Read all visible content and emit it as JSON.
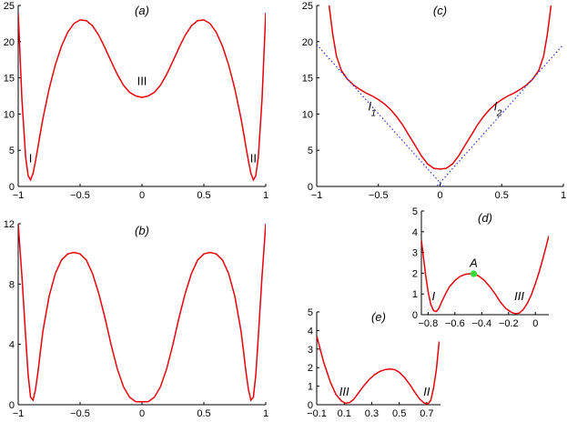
{
  "chart_data": [
    {
      "id": "a",
      "type": "line",
      "title": "(a)",
      "xlim": [
        -1,
        1
      ],
      "ylim": [
        0,
        25
      ],
      "xticks": [
        -1,
        -0.5,
        0,
        0.5,
        1
      ],
      "xtick_labels": [
        "−1",
        "−0.5",
        "0",
        "0.5",
        "1"
      ],
      "yticks": [
        0,
        5,
        10,
        15,
        20,
        25
      ],
      "ytick_labels": [
        "0",
        "5",
        "10",
        "15",
        "20",
        "25"
      ],
      "series": [
        {
          "color": "#e8000b",
          "x": [
            -1.0,
            -0.97,
            -0.94,
            -0.92,
            -0.9,
            -0.88,
            -0.86,
            -0.84,
            -0.82,
            -0.8,
            -0.75,
            -0.7,
            -0.65,
            -0.6,
            -0.55,
            -0.5,
            -0.45,
            -0.4,
            -0.35,
            -0.3,
            -0.25,
            -0.2,
            -0.15,
            -0.1,
            -0.05,
            0.0,
            0.05,
            0.1,
            0.15,
            0.2,
            0.25,
            0.3,
            0.35,
            0.4,
            0.45,
            0.5,
            0.55,
            0.6,
            0.65,
            0.7,
            0.75,
            0.8,
            0.82,
            0.84,
            0.86,
            0.88,
            0.9,
            0.92,
            0.94,
            0.97,
            1.0
          ],
          "y": [
            24.0,
            12.0,
            4.0,
            1.5,
            0.9,
            1.8,
            3.5,
            5.5,
            7.5,
            9.4,
            13.5,
            16.8,
            19.4,
            21.3,
            22.5,
            23.0,
            22.9,
            22.2,
            20.9,
            19.2,
            17.3,
            15.5,
            14.0,
            13.0,
            12.5,
            12.3,
            12.5,
            13.0,
            14.0,
            15.5,
            17.3,
            19.2,
            20.9,
            22.2,
            22.9,
            23.0,
            22.5,
            21.3,
            19.4,
            16.8,
            13.5,
            9.4,
            7.5,
            5.5,
            3.5,
            1.8,
            0.9,
            1.5,
            4.0,
            12.0,
            24.0
          ]
        }
      ],
      "annotations": [
        {
          "text": "I",
          "x": -0.9,
          "y": 3.3
        },
        {
          "text": "II",
          "x": 0.9,
          "y": 3.3
        },
        {
          "text": "III",
          "x": 0.0,
          "y": 14.0
        }
      ]
    },
    {
      "id": "b",
      "type": "line",
      "title": "(b)",
      "xlim": [
        -1,
        1
      ],
      "ylim": [
        0,
        12
      ],
      "xticks": [
        -1,
        -0.5,
        0,
        0.5,
        1
      ],
      "xtick_labels": [
        "−1",
        "−0.5",
        "0",
        "0.5",
        "1"
      ],
      "yticks": [
        0,
        4,
        8,
        12
      ],
      "ytick_labels": [
        "0",
        "4",
        "8",
        "12"
      ],
      "series": [
        {
          "color": "#e8000b",
          "x": [
            -1.0,
            -0.97,
            -0.94,
            -0.92,
            -0.9,
            -0.88,
            -0.86,
            -0.84,
            -0.82,
            -0.8,
            -0.75,
            -0.7,
            -0.65,
            -0.6,
            -0.55,
            -0.5,
            -0.45,
            -0.4,
            -0.35,
            -0.3,
            -0.25,
            -0.2,
            -0.15,
            -0.1,
            -0.05,
            0.0,
            0.05,
            0.1,
            0.15,
            0.2,
            0.25,
            0.3,
            0.35,
            0.4,
            0.45,
            0.5,
            0.55,
            0.6,
            0.65,
            0.7,
            0.75,
            0.8,
            0.82,
            0.84,
            0.86,
            0.88,
            0.9,
            0.92,
            0.94,
            0.97,
            1.0
          ],
          "y": [
            12.0,
            8.5,
            4.5,
            2.0,
            0.5,
            0.3,
            1.0,
            2.2,
            3.6,
            4.9,
            7.2,
            8.7,
            9.6,
            10.0,
            10.1,
            10.0,
            9.6,
            8.7,
            7.4,
            5.8,
            4.0,
            2.4,
            1.2,
            0.5,
            0.2,
            0.2,
            0.2,
            0.5,
            1.2,
            2.4,
            4.0,
            5.8,
            7.4,
            8.7,
            9.6,
            10.0,
            10.1,
            10.0,
            9.6,
            8.7,
            7.2,
            4.9,
            3.6,
            2.2,
            1.0,
            0.3,
            0.5,
            2.0,
            4.5,
            8.5,
            12.0
          ]
        }
      ]
    },
    {
      "id": "c",
      "type": "line",
      "title": "(c)",
      "xlim": [
        -1,
        1
      ],
      "ylim": [
        0,
        25
      ],
      "xticks": [
        -1,
        -0.5,
        0,
        0.5,
        1
      ],
      "xtick_labels": [
        "−1",
        "−0.5",
        "0",
        "0.5",
        "1"
      ],
      "yticks": [
        0,
        5,
        10,
        15,
        20,
        25
      ],
      "ytick_labels": [
        "0",
        "5",
        "10",
        "15",
        "20",
        "25"
      ],
      "series": [
        {
          "color": "#e8000b",
          "x": [
            -0.9,
            -0.87,
            -0.84,
            -0.8,
            -0.75,
            -0.7,
            -0.65,
            -0.6,
            -0.55,
            -0.5,
            -0.45,
            -0.4,
            -0.35,
            -0.3,
            -0.25,
            -0.2,
            -0.15,
            -0.1,
            -0.05,
            0.0,
            0.05,
            0.1,
            0.15,
            0.2,
            0.25,
            0.3,
            0.35,
            0.4,
            0.45,
            0.5,
            0.55,
            0.6,
            0.65,
            0.7,
            0.75,
            0.8,
            0.84,
            0.87,
            0.9
          ],
          "y": [
            25.0,
            21.0,
            18.0,
            16.0,
            14.8,
            14.0,
            13.4,
            12.9,
            12.5,
            12.0,
            11.4,
            10.6,
            9.6,
            8.4,
            7.0,
            5.6,
            4.2,
            3.1,
            2.5,
            2.4,
            2.5,
            3.1,
            4.2,
            5.6,
            7.0,
            8.4,
            9.6,
            10.6,
            11.4,
            12.0,
            12.5,
            12.9,
            13.4,
            14.0,
            14.8,
            16.0,
            18.0,
            21.0,
            25.0
          ]
        },
        {
          "name": "l",
          "color": "#3030d8",
          "style": "dotted",
          "x": [
            -1.0,
            0.1
          ],
          "y": [
            19.6,
            -1.4
          ]
        },
        {
          "name": "l",
          "color": "#3030d8",
          "style": "dotted",
          "x": [
            -0.1,
            1.0
          ],
          "y": [
            -1.4,
            19.6
          ]
        }
      ],
      "annotations": [
        {
          "text": "l",
          "sub": "1",
          "x": -0.55,
          "y": 10.5
        },
        {
          "text": "l",
          "sub": "2",
          "x": 0.47,
          "y": 10.5
        }
      ]
    },
    {
      "id": "d",
      "type": "line",
      "title": "(d)",
      "xlim": [
        -0.85,
        0.1
      ],
      "ylim": [
        0,
        5
      ],
      "xticks": [
        -0.8,
        -0.6,
        -0.4,
        -0.2,
        0
      ],
      "xtick_labels": [
        "−0.8",
        "−0.6",
        "−0.4",
        "−0.2",
        "0"
      ],
      "yticks": [
        0,
        1,
        2,
        3,
        4,
        5
      ],
      "ytick_labels": [
        "0",
        "1",
        "2",
        "3",
        "4",
        "5"
      ],
      "series": [
        {
          "color": "#e8000b",
          "x": [
            -0.85,
            -0.82,
            -0.8,
            -0.78,
            -0.76,
            -0.74,
            -0.72,
            -0.7,
            -0.67,
            -0.64,
            -0.6,
            -0.56,
            -0.52,
            -0.48,
            -0.45,
            -0.42,
            -0.38,
            -0.34,
            -0.3,
            -0.26,
            -0.22,
            -0.18,
            -0.15,
            -0.12,
            -0.09,
            -0.06,
            -0.03,
            0.0,
            0.03,
            0.06,
            0.08,
            0.1
          ],
          "y": [
            3.6,
            2.0,
            1.1,
            0.5,
            0.2,
            0.15,
            0.3,
            0.6,
            1.0,
            1.35,
            1.65,
            1.85,
            1.95,
            1.98,
            1.95,
            1.85,
            1.65,
            1.35,
            1.0,
            0.6,
            0.3,
            0.12,
            0.05,
            0.08,
            0.25,
            0.55,
            0.95,
            1.5,
            2.1,
            2.8,
            3.3,
            3.8
          ]
        }
      ],
      "point": {
        "label": "A",
        "x": -0.46,
        "y": 1.97,
        "color": "#33dd33"
      },
      "annotations": [
        {
          "text": "I",
          "x": -0.76,
          "y": 0.7
        },
        {
          "text": "III",
          "x": -0.12,
          "y": 0.7
        },
        {
          "text": "A",
          "x": -0.46,
          "y": 2.3
        }
      ]
    },
    {
      "id": "e",
      "type": "line",
      "title": "(e)",
      "xlim": [
        -0.1,
        0.8
      ],
      "ylim": [
        0,
        5
      ],
      "xticks": [
        -0.1,
        0.1,
        0.3,
        0.5,
        0.7
      ],
      "xtick_labels": [
        "−0.1",
        "0.1",
        "0.3",
        "0.5",
        "0.7"
      ],
      "yticks": [
        0,
        1,
        2,
        3,
        4,
        5
      ],
      "ytick_labels": [
        "0",
        "1",
        "2",
        "3",
        "4",
        "5"
      ],
      "series": [
        {
          "color": "#e8000b",
          "x": [
            -0.1,
            -0.05,
            0.0,
            0.04,
            0.08,
            0.11,
            0.14,
            0.17,
            0.2,
            0.24,
            0.28,
            0.32,
            0.36,
            0.4,
            0.44,
            0.47,
            0.5,
            0.54,
            0.58,
            0.62,
            0.65,
            0.68,
            0.71,
            0.73,
            0.75,
            0.77,
            0.79
          ],
          "y": [
            3.7,
            2.3,
            1.2,
            0.55,
            0.2,
            0.08,
            0.12,
            0.3,
            0.6,
            1.0,
            1.35,
            1.62,
            1.8,
            1.9,
            1.92,
            1.88,
            1.75,
            1.45,
            1.05,
            0.6,
            0.3,
            0.1,
            0.05,
            0.25,
            0.9,
            1.9,
            3.4
          ]
        }
      ],
      "annotations": [
        {
          "text": "III",
          "x": 0.1,
          "y": 0.5
        },
        {
          "text": "II",
          "x": 0.7,
          "y": 0.5
        }
      ]
    }
  ]
}
